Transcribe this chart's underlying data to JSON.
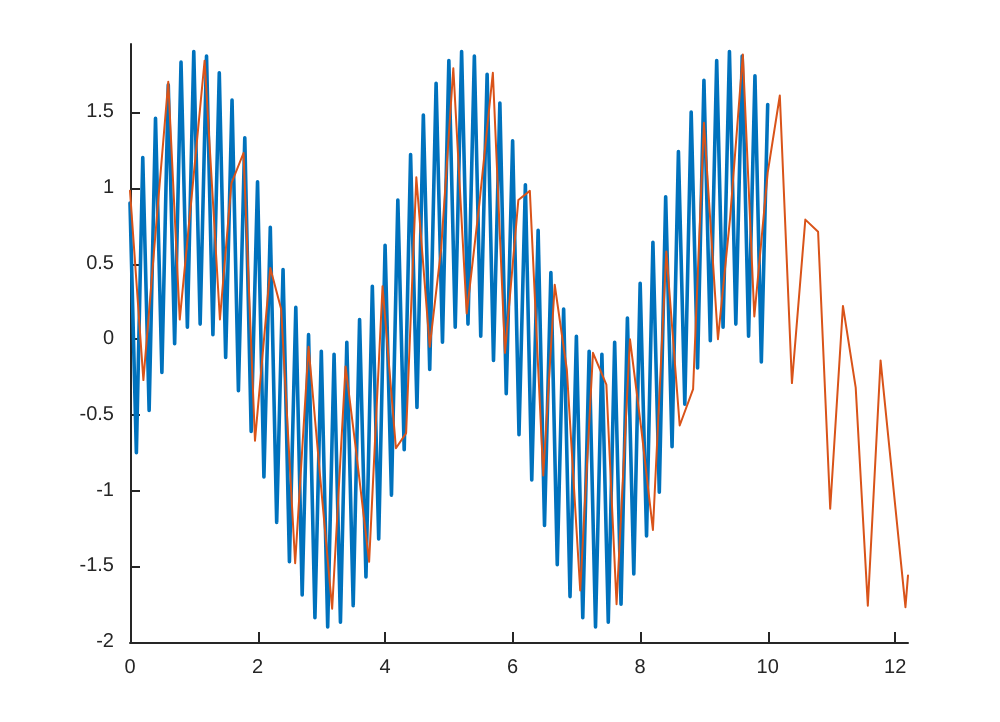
{
  "chart_data": {
    "type": "line",
    "xlim": [
      0,
      12.2
    ],
    "xticks": [
      0,
      2,
      4,
      6,
      8,
      10,
      12
    ],
    "ylim": [
      -2,
      1.95
    ],
    "yticks": [
      -2,
      -1.5,
      -1,
      -0.5,
      0,
      0.5,
      1,
      1.5
    ],
    "grid": false,
    "marker": "none",
    "line_style": "solid",
    "series": [
      {
        "color": "#0072bd",
        "x": [
          0,
          0.1,
          0.2,
          0.3,
          0.4,
          0.5,
          0.6,
          0.7,
          0.8,
          0.9,
          1,
          1.1,
          1.2,
          1.3,
          1.4,
          1.5,
          1.6,
          1.7,
          1.8,
          1.9,
          2,
          2.1,
          2.2,
          2.3,
          2.4,
          2.5,
          2.6,
          2.7,
          2.8,
          2.9,
          3,
          3.1,
          3.2,
          3.3,
          3.4,
          3.5,
          3.6,
          3.7,
          3.8,
          3.9,
          4,
          4.1,
          4.2,
          4.3,
          4.4,
          4.5,
          4.6,
          4.7,
          4.8,
          4.9,
          5,
          5.1,
          5.2,
          5.3,
          5.4,
          5.5,
          5.6,
          5.7,
          5.8,
          5.9,
          6,
          6.1,
          6.2,
          6.3,
          6.4,
          6.5,
          6.6,
          6.7,
          6.8,
          6.9,
          7,
          7.1,
          7.2,
          7.3,
          7.4,
          7.5,
          7.6,
          7.7,
          7.8,
          7.9,
          8,
          8.1,
          8.2,
          8.3,
          8.4,
          8.5,
          8.6,
          8.7,
          8.8,
          8.9,
          9,
          9.1,
          9.2,
          9.3,
          9.4,
          9.5,
          9.6,
          9.7,
          9.8,
          9.9,
          10
        ],
        "values": [
          0.9,
          -0.75,
          1.2,
          -0.47,
          1.46,
          -0.22,
          1.68,
          -0.03,
          1.83,
          0.08,
          1.9,
          0.1,
          1.87,
          0.03,
          1.76,
          -0.12,
          1.58,
          -0.34,
          1.33,
          -0.61,
          1.04,
          -0.91,
          0.74,
          -1.21,
          0.46,
          -1.47,
          0.21,
          -1.69,
          0.03,
          -1.84,
          -0.08,
          -1.9,
          -0.1,
          -1.87,
          -0.02,
          -1.76,
          0.13,
          -1.57,
          0.35,
          -1.32,
          0.62,
          -1.03,
          0.92,
          -0.73,
          1.22,
          -0.45,
          1.48,
          -0.2,
          1.69,
          -0.02,
          1.84,
          0.08,
          1.9,
          0.1,
          1.87,
          0.02,
          1.75,
          -0.14,
          1.56,
          -0.36,
          1.31,
          -0.63,
          1.02,
          -0.93,
          0.72,
          -1.23,
          0.44,
          -1.49,
          0.2,
          -1.7,
          0.02,
          -1.84,
          -0.08,
          -1.9,
          -0.1,
          -1.87,
          -0.02,
          -1.75,
          0.14,
          -1.55,
          0.37,
          -1.3,
          0.64,
          -1.01,
          0.94,
          -0.71,
          1.24,
          -0.43,
          1.5,
          -0.19,
          1.71,
          -0.01,
          1.84,
          0.08,
          1.9,
          0.1,
          1.87,
          0.02,
          1.74,
          -0.15,
          1.55
        ]
      },
      {
        "color": "#d95319",
        "x": [
          0,
          0.21,
          0.4,
          0.6,
          0.78,
          0.98,
          1.17,
          1.41,
          1.59,
          1.78,
          1.96,
          2.2,
          2.37,
          2.59,
          2.8,
          2.98,
          3.17,
          3.38,
          3.54,
          3.75,
          3.96,
          4.17,
          4.33,
          4.49,
          4.7,
          4.88,
          5.07,
          5.28,
          5.48,
          5.69,
          5.88,
          6.09,
          6.27,
          6.48,
          6.66,
          6.85,
          7.06,
          7.26,
          7.47,
          7.63,
          7.84,
          8.02,
          8.2,
          8.41,
          8.62,
          8.83,
          9,
          9.22,
          9.41,
          9.61,
          9.79,
          10,
          10.19,
          10.38,
          10.59,
          10.79,
          10.98,
          11.18,
          11.38,
          11.57,
          11.77,
          12.16,
          12.2
        ],
        "values": [
          0.98,
          -0.27,
          0.7,
          1.7,
          0.13,
          1.0,
          1.84,
          0.13,
          1.03,
          1.23,
          -0.67,
          0.47,
          0.2,
          -1.48,
          -0.05,
          -0.9,
          -1.78,
          -0.18,
          -0.72,
          -1.47,
          0.35,
          -0.72,
          -0.62,
          1.07,
          -0.05,
          0.6,
          1.79,
          0.17,
          0.9,
          1.76,
          -0.09,
          0.92,
          0.98,
          -0.9,
          0.36,
          -0.2,
          -1.66,
          -0.09,
          -0.3,
          -1.75,
          0.0,
          -0.6,
          -1.26,
          0.58,
          -0.57,
          -0.33,
          1.43,
          0.0,
          0.8,
          1.88,
          0.15,
          1.1,
          1.61,
          -0.29,
          0.79,
          0.71,
          -1.12,
          0.22,
          -0.32,
          -1.76,
          -0.14,
          -1.77,
          -1.56
        ]
      }
    ]
  }
}
